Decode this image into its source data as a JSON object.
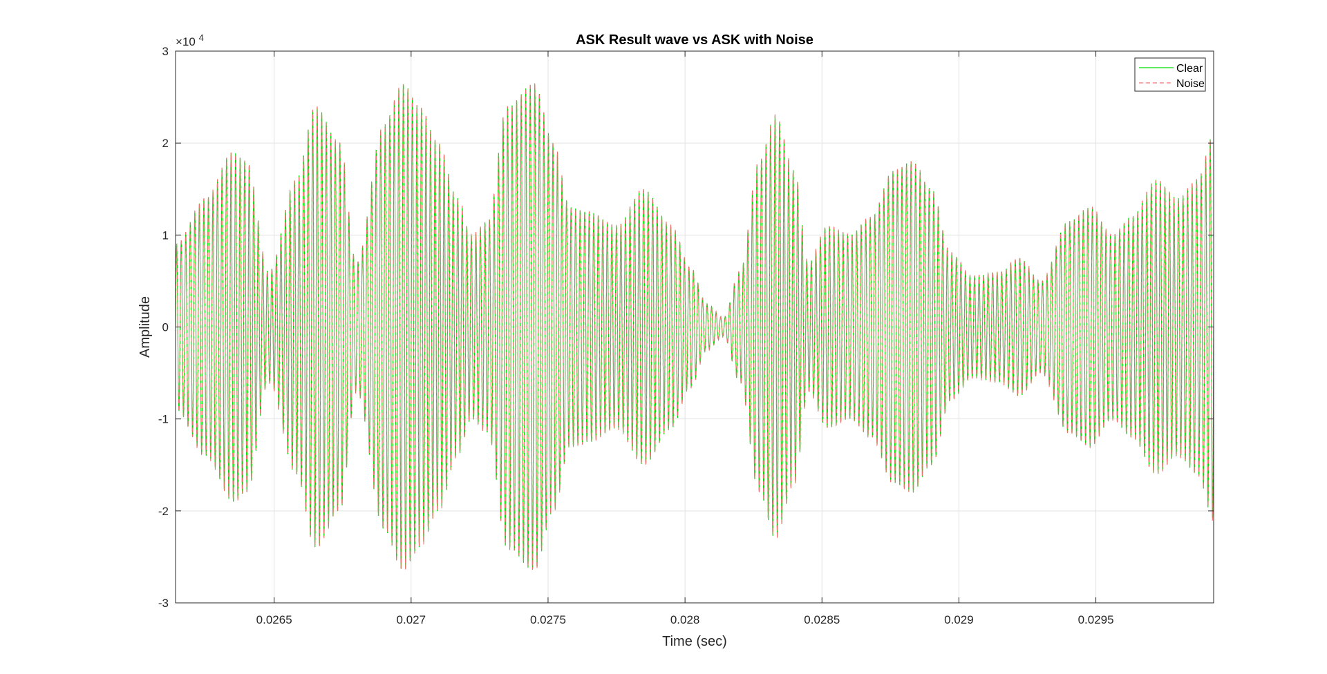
{
  "chart_data": {
    "type": "line",
    "title": "ASK Result wave vs ASK with Noise",
    "xlabel": "Time (sec)",
    "ylabel": "Amplitude",
    "y_exponent_label": "×10",
    "y_exponent_power": "4",
    "xlim": [
      0.02614,
      0.02993
    ],
    "ylim": [
      -30000,
      30000
    ],
    "x_ticks": [
      0.0265,
      0.027,
      0.0275,
      0.028,
      0.0285,
      0.029,
      0.0295
    ],
    "x_tick_labels": [
      "0.0265",
      "0.027",
      "0.0275",
      "0.028",
      "0.0285",
      "0.029",
      "0.0295"
    ],
    "y_ticks": [
      -30000,
      -20000,
      -10000,
      0,
      10000,
      20000,
      30000
    ],
    "y_tick_labels": [
      "-3",
      "-2",
      "-1",
      "0",
      "1",
      "2",
      "3"
    ],
    "grid": true,
    "legend_position": "top-right",
    "carrier_periods_approx": 229,
    "envelope": {
      "x": [
        0.02614,
        0.02625,
        0.02635,
        0.0264,
        0.02648,
        0.02658,
        0.02665,
        0.02674,
        0.0268,
        0.0269,
        0.02697,
        0.02703,
        0.0271,
        0.02717,
        0.02722,
        0.02728,
        0.02735,
        0.02745,
        0.02752,
        0.02758,
        0.02765,
        0.02775,
        0.02785,
        0.02795,
        0.02802,
        0.02808,
        0.02814,
        0.0282,
        0.02827,
        0.02833,
        0.0284,
        0.02845,
        0.02852,
        0.0286,
        0.02868,
        0.02876,
        0.02883,
        0.0289,
        0.02897,
        0.02905,
        0.02915,
        0.02922,
        0.0293,
        0.0294,
        0.02948,
        0.02956,
        0.02963,
        0.02972,
        0.0298,
        0.02987,
        0.02993
      ],
      "y": [
        9000,
        14000,
        19000,
        18000,
        6000,
        16000,
        24000,
        20000,
        7000,
        22000,
        26500,
        24000,
        20000,
        14000,
        10000,
        11500,
        24000,
        26500,
        20000,
        13000,
        12500,
        11000,
        15000,
        11000,
        6500,
        2500,
        1000,
        6000,
        18000,
        23000,
        17000,
        7000,
        11000,
        10000,
        12000,
        17000,
        18000,
        15000,
        8000,
        5500,
        6000,
        7500,
        5000,
        11500,
        13000,
        10000,
        12000,
        16000,
        14000,
        16000,
        21000
      ]
    },
    "series": [
      {
        "name": "Clear",
        "color": "#00e000",
        "style": "solid"
      },
      {
        "name": "Noise",
        "color": "#f07070",
        "style": "dashed"
      }
    ]
  }
}
